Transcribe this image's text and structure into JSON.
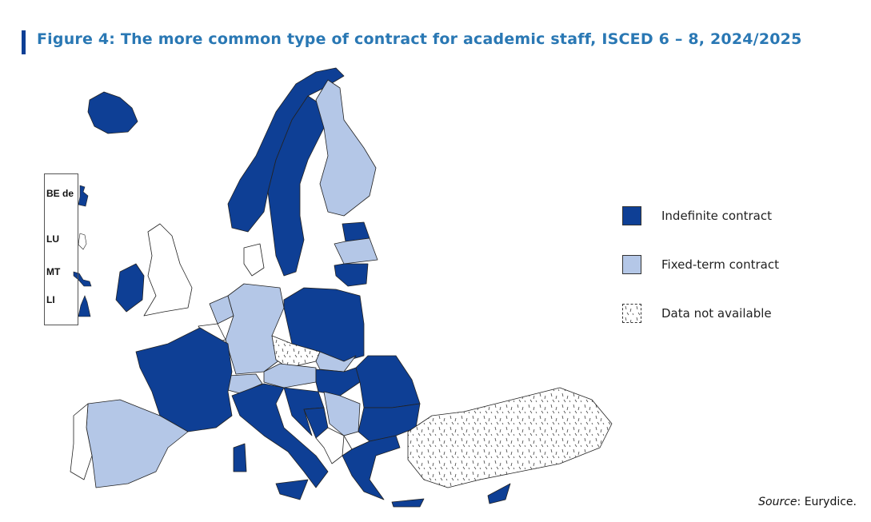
{
  "title": "Figure 4: The more common type of contract for academic staff, ISCED 6 – 8, 2024/2025",
  "colors": {
    "indefinite": "#0e3f95",
    "fixed_term": "#b4c7e7",
    "not_available": "#ffffff",
    "title": "#2a78b4"
  },
  "legend": [
    {
      "key": "indefinite",
      "label": "Indefinite contract"
    },
    {
      "key": "fixed_term",
      "label": "Fixed-term contract"
    },
    {
      "key": "not_available",
      "label": "Data not available"
    }
  ],
  "inset": [
    {
      "code": "BE de",
      "category": "indefinite"
    },
    {
      "code": "LU",
      "category": "not_available"
    },
    {
      "code": "MT",
      "category": "indefinite"
    },
    {
      "code": "LI",
      "category": "indefinite"
    }
  ],
  "source_label": "Source",
  "source_value": ": Eurydice."
}
